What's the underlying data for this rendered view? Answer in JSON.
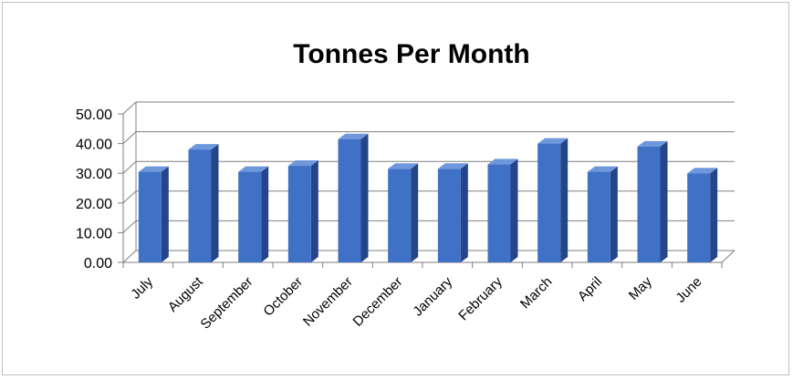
{
  "chart_data": {
    "type": "bar",
    "title": "Tonnes Per Month",
    "categories": [
      "July",
      "August",
      "September",
      "October",
      "November",
      "December",
      "January",
      "February",
      "March",
      "April",
      "May",
      "June"
    ],
    "values": [
      30.5,
      38.0,
      30.5,
      32.5,
      41.5,
      31.5,
      31.5,
      33.0,
      40.0,
      30.5,
      39.0,
      30.0
    ],
    "yticks": [
      "0.00",
      "10.00",
      "20.00",
      "30.00",
      "40.00",
      "50.00"
    ],
    "ylim": [
      0,
      50
    ],
    "grid": true,
    "legend": "none",
    "colors": {
      "bar_front": "#3f71c6",
      "bar_side": "#25458a",
      "bar_top": "#6e97dc",
      "grid": "#7f7f7f"
    }
  }
}
